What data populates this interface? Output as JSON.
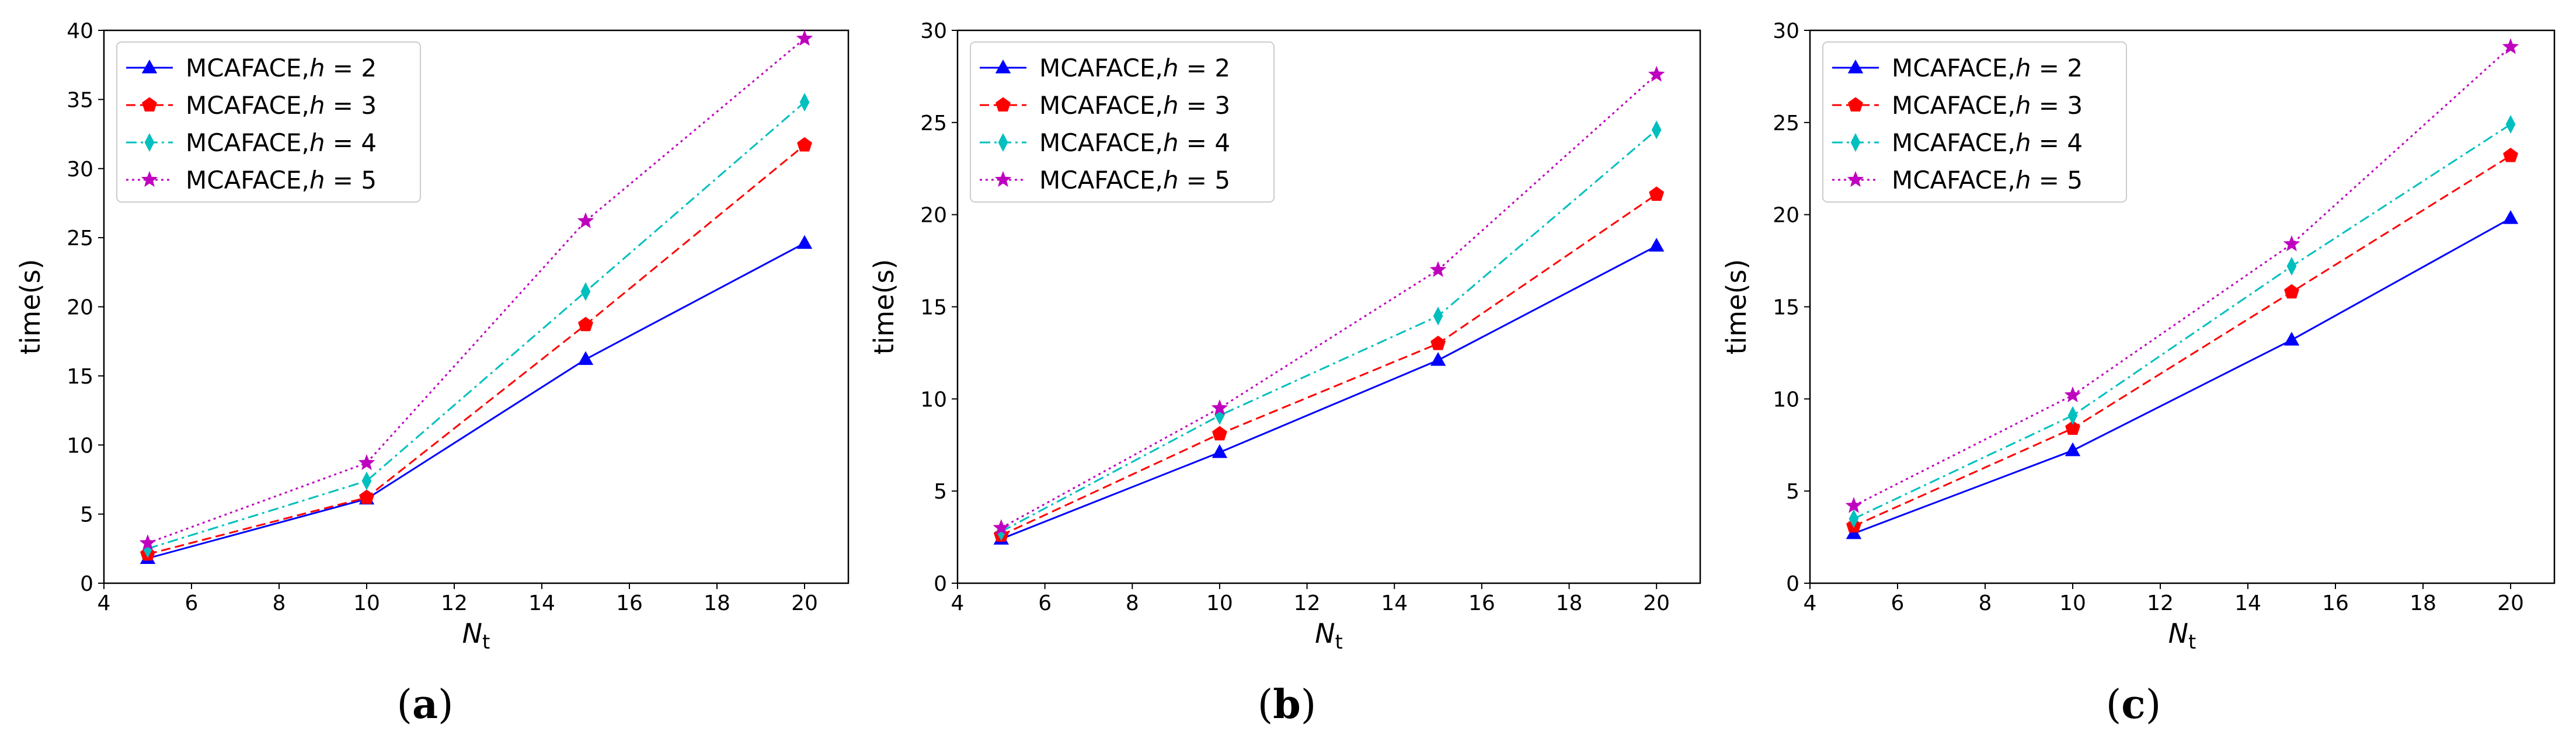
{
  "chart_data": [
    {
      "type": "line",
      "caption": "(a)",
      "caption_letter": "a",
      "xlabel": "N",
      "xlabel_sub": "t",
      "ylabel": "time(s)",
      "xlim": [
        4,
        21
      ],
      "ylim": [
        0,
        40
      ],
      "xticks": [
        4,
        6,
        8,
        10,
        12,
        14,
        16,
        18,
        20
      ],
      "yticks": [
        0,
        5,
        10,
        15,
        20,
        25,
        30,
        35,
        40
      ],
      "x": [
        5,
        10,
        15,
        20
      ],
      "legend_position": "upper-left",
      "series": [
        {
          "name": "MCAFACE,h = 2",
          "legend_prefix": "MCAFACE,",
          "legend_var": "h",
          "legend_rest": " = 2",
          "values": [
            1.8,
            6.1,
            16.2,
            24.6
          ],
          "color": "#0000ff",
          "dash": "solid",
          "marker": "triangle"
        },
        {
          "name": "MCAFACE,h = 3",
          "legend_prefix": "MCAFACE,",
          "legend_var": "h",
          "legend_rest": " = 3",
          "values": [
            2.1,
            6.2,
            18.7,
            31.7
          ],
          "color": "#ff0000",
          "dash": "dashed",
          "marker": "pentagon"
        },
        {
          "name": "MCAFACE,h = 4",
          "legend_prefix": "MCAFACE,",
          "legend_var": "h",
          "legend_rest": " = 4",
          "values": [
            2.5,
            7.4,
            21.1,
            34.8
          ],
          "color": "#00bfbf",
          "dash": "dashdot",
          "marker": "thin-diamond"
        },
        {
          "name": "MCAFACE,h = 5",
          "legend_prefix": "MCAFACE,",
          "legend_var": "h",
          "legend_rest": " = 5",
          "values": [
            2.9,
            8.7,
            26.2,
            39.4
          ],
          "color": "#bf00bf",
          "dash": "dotted",
          "marker": "star"
        }
      ]
    },
    {
      "type": "line",
      "caption": "(b)",
      "caption_letter": "b",
      "xlabel": "N",
      "xlabel_sub": "t",
      "ylabel": "time(s)",
      "xlim": [
        4,
        21
      ],
      "ylim": [
        0,
        30
      ],
      "xticks": [
        4,
        6,
        8,
        10,
        12,
        14,
        16,
        18,
        20
      ],
      "yticks": [
        0,
        5,
        10,
        15,
        20,
        25,
        30
      ],
      "x": [
        5,
        10,
        15,
        20
      ],
      "legend_position": "upper-left",
      "series": [
        {
          "name": "MCAFACE,h = 2",
          "legend_prefix": "MCAFACE,",
          "legend_var": "h",
          "legend_rest": " = 2",
          "values": [
            2.4,
            7.1,
            12.1,
            18.3
          ],
          "color": "#0000ff",
          "dash": "solid",
          "marker": "triangle"
        },
        {
          "name": "MCAFACE,h = 3",
          "legend_prefix": "MCAFACE,",
          "legend_var": "h",
          "legend_rest": " = 3",
          "values": [
            2.6,
            8.1,
            13.0,
            21.1
          ],
          "color": "#ff0000",
          "dash": "dashed",
          "marker": "pentagon"
        },
        {
          "name": "MCAFACE,h = 4",
          "legend_prefix": "MCAFACE,",
          "legend_var": "h",
          "legend_rest": " = 4",
          "values": [
            2.8,
            9.1,
            14.5,
            24.6
          ],
          "color": "#00bfbf",
          "dash": "dashdot",
          "marker": "thin-diamond"
        },
        {
          "name": "MCAFACE,h = 5",
          "legend_prefix": "MCAFACE,",
          "legend_var": "h",
          "legend_rest": " = 5",
          "values": [
            3.0,
            9.5,
            17.0,
            27.6
          ],
          "color": "#bf00bf",
          "dash": "dotted",
          "marker": "star"
        }
      ]
    },
    {
      "type": "line",
      "caption": "(c)",
      "caption_letter": "c",
      "xlabel": "N",
      "xlabel_sub": "t",
      "ylabel": "time(s)",
      "xlim": [
        4,
        21
      ],
      "ylim": [
        0,
        30
      ],
      "xticks": [
        4,
        6,
        8,
        10,
        12,
        14,
        16,
        18,
        20
      ],
      "yticks": [
        0,
        5,
        10,
        15,
        20,
        25,
        30
      ],
      "x": [
        5,
        10,
        15,
        20
      ],
      "legend_position": "upper-left",
      "series": [
        {
          "name": "MCAFACE,h = 2",
          "legend_prefix": "MCAFACE,",
          "legend_var": "h",
          "legend_rest": " = 2",
          "values": [
            2.7,
            7.2,
            13.2,
            19.8
          ],
          "color": "#0000ff",
          "dash": "solid",
          "marker": "triangle"
        },
        {
          "name": "MCAFACE,h = 3",
          "legend_prefix": "MCAFACE,",
          "legend_var": "h",
          "legend_rest": " = 3",
          "values": [
            3.1,
            8.4,
            15.8,
            23.2
          ],
          "color": "#ff0000",
          "dash": "dashed",
          "marker": "pentagon"
        },
        {
          "name": "MCAFACE,h = 4",
          "legend_prefix": "MCAFACE,",
          "legend_var": "h",
          "legend_rest": " = 4",
          "values": [
            3.5,
            9.1,
            17.2,
            24.9
          ],
          "color": "#00bfbf",
          "dash": "dashdot",
          "marker": "thin-diamond"
        },
        {
          "name": "MCAFACE,h = 5",
          "legend_prefix": "MCAFACE,",
          "legend_var": "h",
          "legend_rest": " = 5",
          "values": [
            4.2,
            10.2,
            18.4,
            29.1
          ],
          "color": "#bf00bf",
          "dash": "dotted",
          "marker": "star"
        }
      ]
    }
  ]
}
